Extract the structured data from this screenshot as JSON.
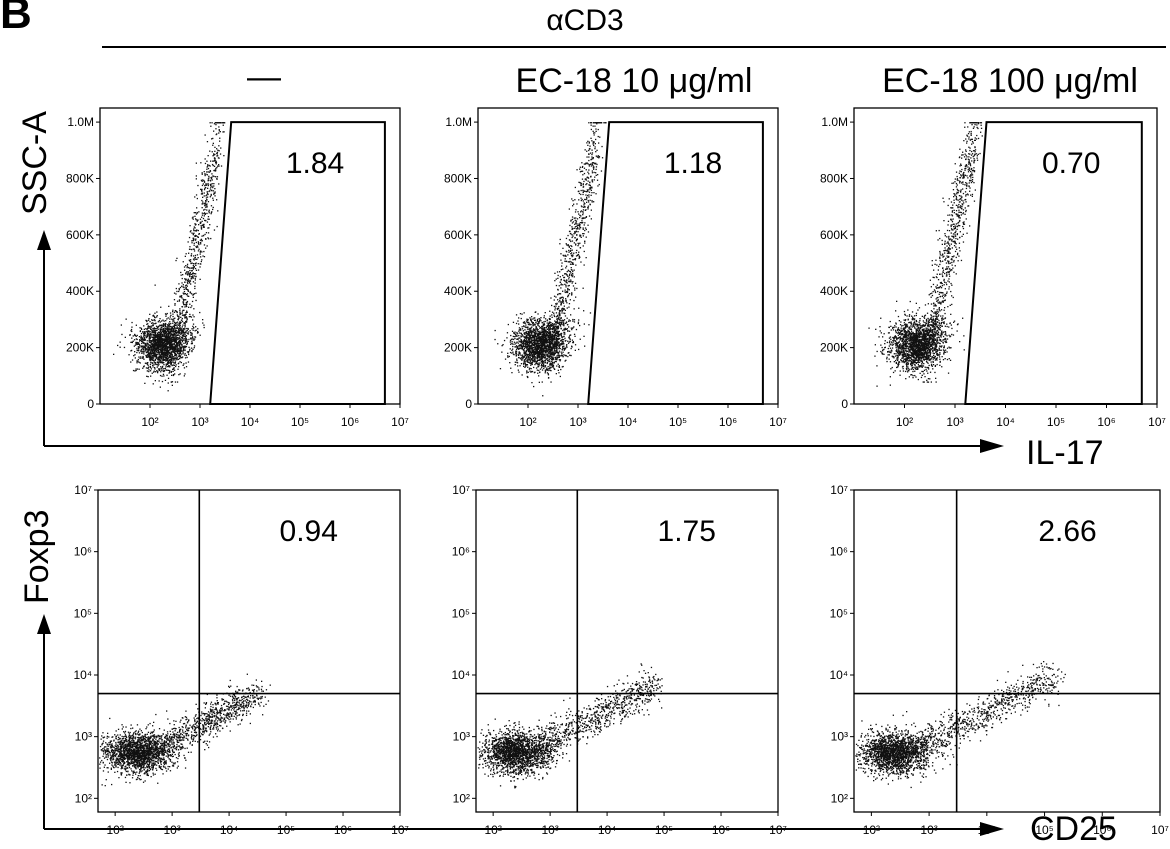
{
  "figure": {
    "panel_letter": "B",
    "header": "αCD3",
    "conditions": [
      "—",
      "EC-18 10 μg/ml",
      "EC-18 100 μg/ml"
    ],
    "row1": {
      "y_axis_title": "SSC-A",
      "x_axis_title": "IL-17"
    },
    "row2": {
      "y_axis_title": "Foxp3",
      "x_axis_title": "CD25"
    }
  },
  "chart_data": [
    {
      "type": "scatter",
      "title": "—",
      "xlabel": "IL-17",
      "ylabel": "SSC-A",
      "x_scale": "log",
      "xlim": [
        10,
        10000000
      ],
      "ylim": [
        0,
        1050000
      ],
      "x_ticks": [
        100,
        1000,
        10000,
        100000,
        1000000,
        10000000
      ],
      "x_tick_labels": [
        "10²",
        "10³",
        "10⁴",
        "10⁵",
        "10⁶",
        "10⁷"
      ],
      "y_ticks": [
        0,
        200000,
        400000,
        600000,
        800000,
        1000000
      ],
      "y_tick_labels": [
        "0",
        "200K",
        "400K",
        "600K",
        "800K",
        "1.0M"
      ],
      "gate": {
        "type": "polygon",
        "vertices": [
          [
            1600,
            0
          ],
          [
            5000000,
            0
          ],
          [
            5000000,
            1000000
          ],
          [
            4200,
            1000000
          ]
        ]
      },
      "annotations": [
        {
          "text": "1.84",
          "x": 200000,
          "y": 820000
        }
      ],
      "points": []
    },
    {
      "type": "scatter",
      "title": "EC-18 10 μg/ml",
      "xlabel": "IL-17",
      "ylabel": "SSC-A",
      "x_scale": "log",
      "xlim": [
        10,
        10000000
      ],
      "ylim": [
        0,
        1050000
      ],
      "x_ticks": [
        100,
        1000,
        10000,
        100000,
        1000000,
        10000000
      ],
      "x_tick_labels": [
        "10²",
        "10³",
        "10⁴",
        "10⁵",
        "10⁶",
        "10⁷"
      ],
      "y_ticks": [
        0,
        200000,
        400000,
        600000,
        800000,
        1000000
      ],
      "y_tick_labels": [
        "0",
        "200K",
        "400K",
        "600K",
        "800K",
        "1.0M"
      ],
      "gate": {
        "type": "polygon",
        "vertices": [
          [
            1600,
            0
          ],
          [
            5000000,
            0
          ],
          [
            5000000,
            1000000
          ],
          [
            4200,
            1000000
          ]
        ]
      },
      "annotations": [
        {
          "text": "1.18",
          "x": 200000,
          "y": 820000
        }
      ],
      "points": []
    },
    {
      "type": "scatter",
      "title": "EC-18 100 μg/ml",
      "xlabel": "IL-17",
      "ylabel": "SSC-A",
      "x_scale": "log",
      "xlim": [
        10,
        10000000
      ],
      "ylim": [
        0,
        1050000
      ],
      "x_ticks": [
        100,
        1000,
        10000,
        100000,
        1000000,
        10000000
      ],
      "x_tick_labels": [
        "10²",
        "10³",
        "10⁴",
        "10⁵",
        "10⁶",
        "10⁷"
      ],
      "y_ticks": [
        0,
        200000,
        400000,
        600000,
        800000,
        1000000
      ],
      "y_tick_labels": [
        "0",
        "200K",
        "400K",
        "600K",
        "800K",
        "1.0M"
      ],
      "gate": {
        "type": "polygon",
        "vertices": [
          [
            1600,
            0
          ],
          [
            5000000,
            0
          ],
          [
            5000000,
            1000000
          ],
          [
            4200,
            1000000
          ]
        ]
      },
      "annotations": [
        {
          "text": "0.70",
          "x": 200000,
          "y": 820000
        }
      ],
      "points": []
    },
    {
      "type": "scatter",
      "title": "",
      "xlabel": "CD25",
      "ylabel": "Foxp3",
      "x_scale": "log",
      "y_scale": "log",
      "xlim": [
        50,
        10000000
      ],
      "ylim": [
        60,
        10000000
      ],
      "x_ticks": [
        100,
        1000,
        10000,
        100000,
        1000000,
        10000000
      ],
      "x_tick_labels": [
        "10²",
        "10³",
        "10⁴",
        "10⁵",
        "10⁶",
        "10⁷"
      ],
      "y_ticks": [
        100,
        1000,
        10000,
        100000,
        1000000,
        10000000
      ],
      "y_tick_labels": [
        "10²",
        "10³",
        "10⁴",
        "10⁵",
        "10⁶",
        "10⁷"
      ],
      "quadrant": {
        "x": 3000,
        "y": 5000
      },
      "annotations": [
        {
          "text": "0.94",
          "x": 250000,
          "y": 1500000
        }
      ],
      "points": []
    },
    {
      "type": "scatter",
      "title": "",
      "xlabel": "CD25",
      "ylabel": "Foxp3",
      "x_scale": "log",
      "y_scale": "log",
      "xlim": [
        50,
        10000000
      ],
      "ylim": [
        60,
        10000000
      ],
      "x_ticks": [
        100,
        1000,
        10000,
        100000,
        1000000,
        10000000
      ],
      "x_tick_labels": [
        "10²",
        "10³",
        "10⁴",
        "10⁵",
        "10⁶",
        "10⁷"
      ],
      "y_ticks": [
        100,
        1000,
        10000,
        100000,
        1000000,
        10000000
      ],
      "y_tick_labels": [
        "10²",
        "10³",
        "10⁴",
        "10⁵",
        "10⁶",
        "10⁷"
      ],
      "quadrant": {
        "x": 3000,
        "y": 5000
      },
      "annotations": [
        {
          "text": "1.75",
          "x": 250000,
          "y": 1500000
        }
      ],
      "points": []
    },
    {
      "type": "scatter",
      "title": "",
      "xlabel": "CD25",
      "ylabel": "Foxp3",
      "x_scale": "log",
      "y_scale": "log",
      "xlim": [
        50,
        10000000
      ],
      "ylim": [
        60,
        10000000
      ],
      "x_ticks": [
        100,
        1000,
        10000,
        100000,
        1000000,
        10000000
      ],
      "x_tick_labels": [
        "10²",
        "10³",
        "10⁴",
        "10⁵",
        "10⁶",
        "10⁷"
      ],
      "y_ticks": [
        100,
        1000,
        10000,
        100000,
        1000000,
        10000000
      ],
      "y_tick_labels": [
        "10²",
        "10³",
        "10⁴",
        "10⁵",
        "10⁶",
        "10⁷"
      ],
      "quadrant": {
        "x": 3000,
        "y": 5000
      },
      "annotations": [
        {
          "text": "2.66",
          "x": 250000,
          "y": 1500000
        }
      ],
      "points": []
    }
  ]
}
